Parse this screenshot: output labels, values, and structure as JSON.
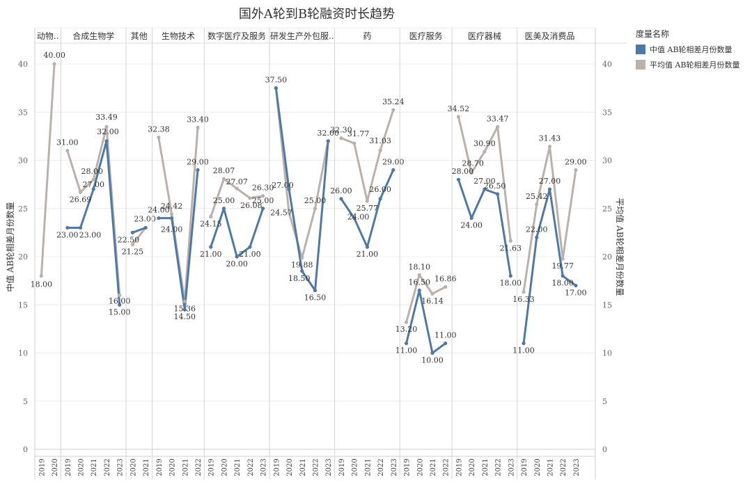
{
  "chart_data": {
    "type": "line",
    "title": "国外A轮到B轮融资时长趋势",
    "ylabel_left": "中值 AB轮相差月份数量",
    "ylabel_right": "平均值 AB轮相差月份数量",
    "ylim": [
      0,
      42
    ],
    "yticks": [
      0,
      5,
      10,
      15,
      20,
      25,
      30,
      35,
      40
    ],
    "grid": true,
    "legend_position": "top-right",
    "legend": {
      "title": "度量名称",
      "items": [
        {
          "name": "中值 AB轮相差月份数量",
          "color": "#4e79a7"
        },
        {
          "name": "平均值 AB轮相差月份数量",
          "color": "#bab0ac"
        }
      ]
    },
    "panels": [
      {
        "name": "动物..",
        "years": [
          "2019",
          "2020"
        ],
        "median": [
          18.0,
          40.0
        ],
        "mean": [
          18.0,
          40.0
        ],
        "median_labels": [],
        "mean_labels": [
          "18.00",
          "40.00"
        ]
      },
      {
        "name": "合成生物学",
        "years": [
          "2019",
          "2020",
          "2021",
          "2022",
          "2023"
        ],
        "median": [
          23.0,
          23.0,
          27.0,
          32.0,
          15.0
        ],
        "mean": [
          31.0,
          26.69,
          28.0,
          33.49,
          16.0
        ],
        "median_labels": [
          "23.00",
          "23.00",
          "27.00",
          "32.00",
          "15.00"
        ],
        "mean_labels": [
          "31.00",
          "26.69",
          "28.00",
          "33.49",
          "16.00"
        ]
      },
      {
        "name": "其他",
        "years": [
          "2020",
          "2021"
        ],
        "median": [
          22.5,
          23.0
        ],
        "mean": [
          21.25,
          23.0
        ],
        "median_labels": [
          "22.50",
          "23.00"
        ],
        "mean_labels": [
          "21.25",
          ""
        ]
      },
      {
        "name": "生物技术",
        "years": [
          "2019",
          "2020",
          "2021",
          "2022"
        ],
        "median": [
          24.0,
          24.0,
          14.5,
          29.0
        ],
        "mean": [
          32.38,
          24.42,
          15.36,
          33.4
        ],
        "median_labels": [
          "24.00",
          "24.00",
          "14.50",
          "29.00"
        ],
        "mean_labels": [
          "32.38",
          "24.42",
          "15.36",
          "33.40"
        ]
      },
      {
        "name": "数字医疗及服务",
        "years": [
          "2019",
          "2020",
          "2021",
          "2022",
          "2023"
        ],
        "median": [
          21.0,
          25.0,
          20.0,
          21.0,
          25.0
        ],
        "mean": [
          24.15,
          28.07,
          27.07,
          26.08,
          26.3
        ],
        "median_labels": [
          "21.00",
          "25.00",
          "20.00",
          "21.00",
          "25.00"
        ],
        "mean_labels": [
          "24.15",
          "28.07",
          "27.07",
          "26.08",
          "26.30"
        ]
      },
      {
        "name": "研发生产外包服..",
        "years": [
          "2019",
          "2020",
          "2021",
          "2022",
          "2023"
        ],
        "median": [
          37.5,
          27.0,
          18.5,
          16.5,
          32.0
        ],
        "mean": [
          37.5,
          24.57,
          19.88,
          25.0,
          32.0
        ],
        "median_labels": [
          "37.50",
          "27.00",
          "18.50",
          "16.50",
          "32.00"
        ],
        "mean_labels": [
          "",
          "24.57",
          "19.88",
          "25.00",
          ""
        ]
      },
      {
        "name": "药",
        "years": [
          "2019",
          "2020",
          "2021",
          "2022",
          "2023"
        ],
        "median": [
          26.0,
          24.0,
          21.0,
          26.0,
          29.0
        ],
        "mean": [
          32.3,
          31.77,
          25.77,
          31.03,
          35.24
        ],
        "median_labels": [
          "26.00",
          "24.00",
          "21.00",
          "26.00",
          "29.00"
        ],
        "mean_labels": [
          "32.30",
          "31.77",
          "25.77",
          "31.03",
          "35.24"
        ]
      },
      {
        "name": "医疗服务",
        "years": [
          "2019",
          "2020",
          "2021",
          "2022"
        ],
        "median": [
          11.0,
          16.5,
          10.0,
          11.0
        ],
        "mean": [
          13.2,
          18.1,
          16.14,
          16.86
        ],
        "median_labels": [
          "11.00",
          "16.50",
          "10.00",
          "11.00"
        ],
        "mean_labels": [
          "13.20",
          "18.10",
          "16.14",
          "16.86"
        ]
      },
      {
        "name": "医疗器械",
        "years": [
          "2019",
          "2020",
          "2021",
          "2022",
          "2023"
        ],
        "median": [
          28.0,
          24.0,
          27.0,
          26.5,
          18.0
        ],
        "mean": [
          34.52,
          28.7,
          30.9,
          33.47,
          21.63
        ],
        "median_labels": [
          "28.00",
          "24.00",
          "27.00",
          "26.50",
          "18.00"
        ],
        "mean_labels": [
          "34.52",
          "28.70",
          "30.90",
          "33.47",
          "21.63"
        ]
      },
      {
        "name": "医美及消费品",
        "years": [
          "2019",
          "2020",
          "2021",
          "2022",
          "2023"
        ],
        "median": [
          11.0,
          22.0,
          27.0,
          18.0,
          17.0
        ],
        "mean": [
          16.33,
          25.42,
          31.43,
          19.77,
          29.0
        ],
        "median_labels": [
          "11.00",
          "22.00",
          "27.00",
          "18.00",
          "17.00"
        ],
        "mean_labels": [
          "16.33",
          "25.42",
          "31.43",
          "19.77",
          "29.00"
        ]
      }
    ]
  }
}
